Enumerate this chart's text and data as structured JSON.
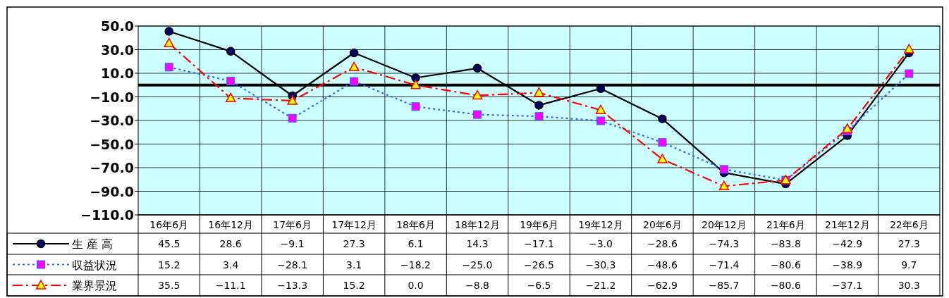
{
  "chart_data": {
    "type": "line",
    "categories": [
      "16年6月",
      "16年12月",
      "17年6月",
      "17年12月",
      "18年6月",
      "18年12月",
      "19年6月",
      "19年12月",
      "20年6月",
      "20年12月",
      "21年6月",
      "21年12月",
      "22年6月"
    ],
    "ylim": [
      -110,
      50
    ],
    "yticks": [
      {
        "value": 50,
        "label": "50.0"
      },
      {
        "value": 30,
        "label": "30.0"
      },
      {
        "value": 10,
        "label": "10.0"
      },
      {
        "value": -10,
        "label": "−10.0"
      },
      {
        "value": -30,
        "label": "−30.0"
      },
      {
        "value": -50,
        "label": "−50.0"
      },
      {
        "value": -70,
        "label": "−70.0"
      },
      {
        "value": -90,
        "label": "−90.0"
      },
      {
        "value": -110,
        "label": "−110.0"
      }
    ],
    "grid": true,
    "legend": "bottom",
    "ref_lines": [
      {
        "axis": "y",
        "value": 0,
        "color": "#000000"
      }
    ],
    "series": [
      {
        "name": "生 産 高",
        "color": "#000000",
        "marker": "circle",
        "line_style": "solid",
        "values": [
          45.5,
          28.6,
          -9.1,
          27.3,
          6.1,
          14.3,
          -17.1,
          -3.0,
          -28.6,
          -74.3,
          -83.8,
          -42.9,
          27.3
        ],
        "value_labels": [
          "45.5",
          "28.6",
          "−9.1",
          "27.3",
          "6.1",
          "14.3",
          "−17.1",
          "−3.0",
          "−28.6",
          "−74.3",
          "−83.8",
          "−42.9",
          "27.3"
        ]
      },
      {
        "name": "収益状況",
        "color": "#3366ff",
        "marker": "square",
        "line_style": "dotted",
        "values": [
          15.2,
          3.4,
          -28.1,
          3.1,
          -18.2,
          -25.0,
          -26.5,
          -30.3,
          -48.6,
          -71.4,
          -80.6,
          -38.9,
          9.7
        ],
        "value_labels": [
          "15.2",
          "3.4",
          "−28.1",
          "3.1",
          "−18.2",
          "−25.0",
          "−26.5",
          "−30.3",
          "−48.6",
          "−71.4",
          "−80.6",
          "−38.9",
          "9.7"
        ]
      },
      {
        "name": "業界景況",
        "color": "#ff0000",
        "marker": "triangle",
        "line_style": "dashed",
        "values": [
          35.5,
          -11.1,
          -13.3,
          15.2,
          0.0,
          -8.8,
          -6.5,
          -21.2,
          -62.9,
          -85.7,
          -80.6,
          -37.1,
          30.3
        ],
        "value_labels": [
          "35.5",
          "−11.1",
          "−13.3",
          "15.2",
          "0.0",
          "−8.8",
          "−6.5",
          "−21.2",
          "−62.9",
          "−85.7",
          "−80.6",
          "−37.1",
          "30.3"
        ]
      }
    ]
  }
}
